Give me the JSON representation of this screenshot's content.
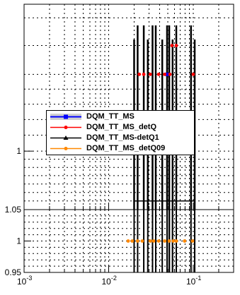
{
  "chart_data": [
    {
      "type": "scatter",
      "panel": "top",
      "x_scale": "log",
      "y_scale": "log",
      "xlim": [
        0.001,
        0.3
      ],
      "ylim": [
        0.93,
        1.2
      ],
      "x_ticks": [
        {
          "value": 0.001,
          "label": "10",
          "exp": "-3"
        },
        {
          "value": 0.01,
          "label": "10",
          "exp": "-2"
        },
        {
          "value": 0.1,
          "label": "10",
          "exp": "-1"
        }
      ],
      "y_ticks": [
        {
          "value": 1.0,
          "label": "1"
        }
      ],
      "grid": true,
      "legend_position": "middle-left",
      "bin_edges": [
        0.02,
        0.022,
        0.026,
        0.029,
        0.033,
        0.036,
        0.043,
        0.049,
        0.052,
        0.057,
        0.063,
        0.094,
        0.104
      ],
      "series": [
        {
          "name": "DQM_TT_MS",
          "color": "#0000ff",
          "marker": "square",
          "points": [
            {
              "x": 0.049,
              "y": 1.1
            }
          ]
        },
        {
          "name": "DQM_TT_MS_detQ",
          "color": "#ff0000",
          "marker": "circle",
          "points": [
            {
              "x": 0.023,
              "y": 1.1
            },
            {
              "x": 0.026,
              "y": 1.1
            },
            {
              "x": 0.031,
              "y": 1.1
            },
            {
              "x": 0.039,
              "y": 1.1
            },
            {
              "x": 0.046,
              "y": 1.1
            },
            {
              "x": 0.053,
              "y": 1.1
            },
            {
              "x": 0.056,
              "y": 1.14
            },
            {
              "x": 0.063,
              "y": 1.14
            },
            {
              "x": 0.1,
              "y": 1.1
            }
          ]
        },
        {
          "name": "DQM_TT_MS-detQ1",
          "color": "#000000",
          "marker": "triangle",
          "points": []
        },
        {
          "name": "DQM_TT_MS_detQ09",
          "color": "#ff8800",
          "marker": "circle",
          "points": []
        }
      ]
    },
    {
      "type": "scatter",
      "panel": "bottom",
      "x_scale": "log",
      "xlim": [
        0.001,
        0.3
      ],
      "ylim": [
        0.95,
        1.05
      ],
      "x_ticks": [
        {
          "value": 0.001,
          "label": "10",
          "exp": "-3"
        },
        {
          "value": 0.01,
          "label": "10",
          "exp": "-2"
        },
        {
          "value": 0.1,
          "label": "10",
          "exp": "-1"
        }
      ],
      "y_ticks": [
        {
          "value": 0.95,
          "label": "0.95"
        },
        {
          "value": 1.0,
          "label": "1"
        },
        {
          "value": 1.05,
          "label": "1.05"
        }
      ],
      "grid": true,
      "shaded_band": [
        0.049,
        0.057
      ],
      "series": [
        {
          "name": "DQM_TT_MS_detQ09",
          "color": "#ff8800",
          "marker": "circle",
          "points": [
            {
              "x": 0.017,
              "y": 1.0
            },
            {
              "x": 0.019,
              "y": 1.0
            },
            {
              "x": 0.022,
              "y": 1.0
            },
            {
              "x": 0.025,
              "y": 1.0
            },
            {
              "x": 0.031,
              "y": 1.0
            },
            {
              "x": 0.034,
              "y": 1.0
            },
            {
              "x": 0.039,
              "y": 1.0
            },
            {
              "x": 0.046,
              "y": 1.0
            },
            {
              "x": 0.052,
              "y": 1.0
            },
            {
              "x": 0.058,
              "y": 1.0
            },
            {
              "x": 0.063,
              "y": 1.0
            },
            {
              "x": 0.079,
              "y": 1.0
            },
            {
              "x": 0.098,
              "y": 1.0
            }
          ]
        }
      ]
    }
  ]
}
